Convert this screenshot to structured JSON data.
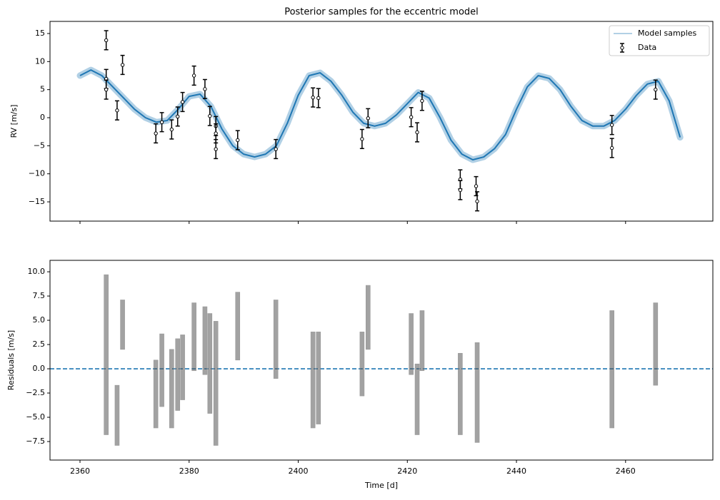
{
  "chart_data": [
    {
      "type": "line",
      "title": "Posterior samples for the eccentric model",
      "ylabel": "RV [m/s]",
      "xlim": [
        2354.5,
        2476
      ],
      "ylim": [
        -18.43,
        17.16
      ],
      "xticks": [
        2360,
        2380,
        2400,
        2420,
        2440,
        2460
      ],
      "yticks": [
        {
          "value": -15,
          "label": "−15"
        },
        {
          "value": -10,
          "label": "−10"
        },
        {
          "value": -5,
          "label": "−5"
        },
        0,
        5,
        10,
        15
      ],
      "legend": "upper right",
      "series": [
        {
          "name": "Model samples",
          "color": "#1f77b4",
          "x": [
            2360,
            2362,
            2364,
            2366,
            2368,
            2370,
            2372,
            2374,
            2376,
            2378,
            2380,
            2382,
            2384,
            2386,
            2388,
            2390,
            2392,
            2394,
            2396,
            2398,
            2400,
            2402,
            2404,
            2406,
            2408,
            2410,
            2412,
            2414,
            2416,
            2418,
            2420,
            2422,
            2424,
            2426,
            2428,
            2430,
            2432,
            2434,
            2436,
            2438,
            2440,
            2442,
            2444,
            2446,
            2448,
            2450,
            2452,
            2454,
            2456,
            2458,
            2460,
            2462,
            2464,
            2466,
            2468,
            2470
          ],
          "values": [
            7.5,
            8.5,
            7.5,
            5.5,
            3.5,
            1.5,
            0,
            -0.8,
            -0.5,
            1.5,
            3.8,
            4.2,
            2,
            -2,
            -5,
            -6.5,
            -7,
            -6.5,
            -5,
            -1,
            4,
            7.5,
            8,
            6.5,
            4,
            1,
            -1,
            -1.5,
            -1,
            0.5,
            2.5,
            4.5,
            3.5,
            0,
            -4,
            -6.5,
            -7.5,
            -7,
            -5.5,
            -3,
            1.5,
            5.5,
            7.5,
            7,
            5,
            2,
            -0.5,
            -1.5,
            -1.5,
            -0.5,
            1.5,
            4,
            6,
            6.5,
            3,
            -3.5
          ]
        },
        {
          "name": "Data",
          "color": "#000000",
          "x": [
            2364.8,
            2364.8,
            2364.8,
            2366.8,
            2367.8,
            2373.9,
            2375.0,
            2376.8,
            2377.9,
            2378.8,
            2380.9,
            2382.9,
            2383.8,
            2384.9,
            2384.9,
            2384.9,
            2388.9,
            2395.9,
            2402.7,
            2403.7,
            2411.7,
            2412.8,
            2420.7,
            2421.8,
            2422.7,
            2429.7,
            2429.7,
            2432.6,
            2432.8,
            2457.5,
            2457.5,
            2465.5
          ],
          "values": [
            13.8,
            6.9,
            5.0,
            1.3,
            9.4,
            -2.8,
            -0.8,
            -2.1,
            0.2,
            2.8,
            7.5,
            5.1,
            0.3,
            -1.5,
            -2.8,
            -5.6,
            -4.0,
            -5.6,
            3.6,
            3.5,
            -3.8,
            -0.1,
            0.1,
            -2.6,
            3.0,
            -11.0,
            -12.9,
            -12.2,
            -14.9,
            -1.3,
            -5.4,
            5.0
          ],
          "errors": [
            1.7,
            1.7,
            1.7,
            1.7,
            1.7,
            1.7,
            1.7,
            1.7,
            1.7,
            1.7,
            1.7,
            1.7,
            1.7,
            1.7,
            1.7,
            1.7,
            1.7,
            1.7,
            1.7,
            1.7,
            1.7,
            1.7,
            1.7,
            1.7,
            1.7,
            1.7,
            1.7,
            1.7,
            1.7,
            1.7,
            1.7,
            1.7
          ]
        }
      ]
    },
    {
      "type": "range",
      "xlabel": "Time [d]",
      "ylabel": "Residuals [m/s]",
      "xlim": [
        2354.5,
        2476
      ],
      "ylim": [
        -9.41,
        11.18
      ],
      "xticks": [
        2360,
        2380,
        2400,
        2420,
        2440,
        2460
      ],
      "yticks": [
        {
          "value": -7.5,
          "label": "−7.5"
        },
        {
          "value": -5,
          "label": "−5.0"
        },
        {
          "value": -2.5,
          "label": "−2.5"
        },
        {
          "value": 0,
          "label": "0.0"
        },
        {
          "value": 2.5,
          "label": "2.5"
        },
        {
          "value": 5,
          "label": "5.0"
        },
        {
          "value": 7.5,
          "label": "7.5"
        },
        {
          "value": 10,
          "label": "10.0"
        }
      ],
      "hline": 0,
      "hline_color": "#1f77b4",
      "color": "#555555",
      "x": [
        2364.8,
        2366.8,
        2367.8,
        2373.9,
        2375.0,
        2376.8,
        2377.9,
        2378.8,
        2380.9,
        2382.9,
        2383.8,
        2384.9,
        2388.9,
        2395.9,
        2402.7,
        2403.7,
        2411.7,
        2412.8,
        2420.7,
        2421.8,
        2422.7,
        2429.7,
        2432.8,
        2457.5,
        2465.5
      ],
      "low": [
        -6.8,
        -7.9,
        2.0,
        -6.1,
        -3.9,
        -6.1,
        -4.3,
        -3.2,
        -0.2,
        -0.6,
        -4.6,
        -7.9,
        0.9,
        -1.0,
        -6.1,
        -5.7,
        -2.8,
        2.0,
        -0.6,
        -6.8,
        -0.2,
        -6.8,
        -7.6,
        -6.1,
        -1.7
      ],
      "high": [
        9.7,
        -1.7,
        7.1,
        0.9,
        3.6,
        2.0,
        3.1,
        3.5,
        6.8,
        6.4,
        5.7,
        4.9,
        7.9,
        7.1,
        3.8,
        3.8,
        3.8,
        8.6,
        5.7,
        0.5,
        6.0,
        1.6,
        2.7,
        6.0,
        6.8
      ]
    }
  ]
}
